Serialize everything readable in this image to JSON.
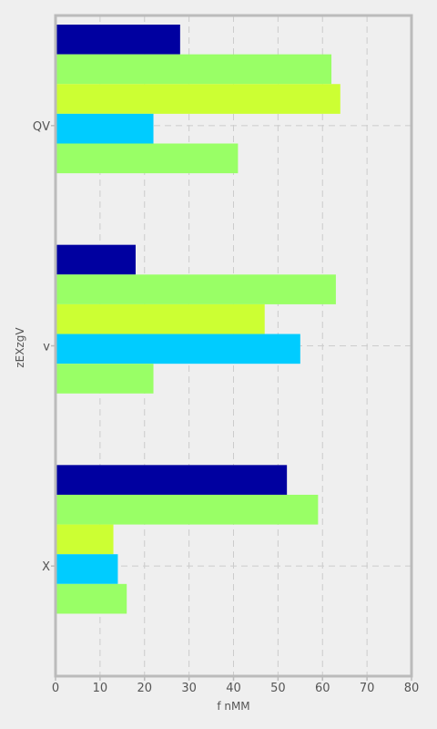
{
  "chart_data": {
    "type": "bar",
    "orientation": "horizontal",
    "title": "",
    "xlabel": "f nMM",
    "ylabel": "zEXzgV",
    "xlim": [
      0,
      80
    ],
    "x_ticks": [
      "0",
      "10",
      "20",
      "30",
      "40",
      "50",
      "60",
      "70",
      "80"
    ],
    "categories": [
      "QV",
      "v",
      "X"
    ],
    "grid": true,
    "legend": "none",
    "series": [
      {
        "color": "#0000a0",
        "values": [
          28,
          18,
          52
        ]
      },
      {
        "color": "#99ff66",
        "values": [
          62,
          63,
          59
        ]
      },
      {
        "color": "#ccff33",
        "values": [
          64,
          47,
          13
        ]
      },
      {
        "color": "#00ccff",
        "values": [
          22,
          55,
          14
        ]
      },
      {
        "color": "#99ff66",
        "values": [
          41,
          22,
          16
        ]
      }
    ],
    "colors": {
      "background": "#efefef",
      "frame": "#bbbbbb",
      "grid": "#cccccc",
      "text": "#555555"
    }
  }
}
